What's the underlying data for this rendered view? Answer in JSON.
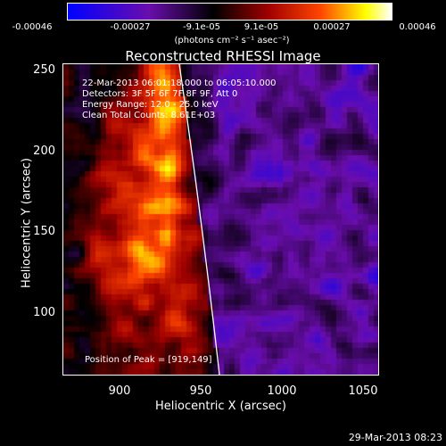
{
  "colorbar": {
    "ticks": [
      "-0.00046",
      "-0.00027",
      "-9.1e-05",
      "9.1e-05",
      "0.00027",
      "0.00046"
    ],
    "unit": "(photons cm⁻² s⁻¹ asec⁻²)",
    "colors": [
      "#0000ff",
      "#6a0dad",
      "#000000",
      "#8b0000",
      "#ff4500",
      "#ffff00",
      "#ffffff"
    ]
  },
  "chart_data": {
    "type": "heatmap",
    "title": "Reconstructed RHESSI Image",
    "xlabel": "Heliocentric X (arcsec)",
    "ylabel": "Heliocentric Y (arcsec)",
    "xlim": [
      865,
      1060
    ],
    "ylim": [
      55,
      252
    ],
    "x_ticks": [
      "900",
      "950",
      "1000",
      "1050"
    ],
    "y_ticks": [
      "100",
      "150",
      "200",
      "250"
    ],
    "colorbar_range": [
      -0.00046,
      0.00046
    ],
    "peak_position": [
      919,
      149
    ],
    "annotations": [
      "22-Mar-2013 06:01:18.000 to 06:05:10.000",
      "Detectors: 3F 5F 6F 7F 8F 9F, Att 0",
      "Energy Range: 12.0 - 25.0 keV",
      "Clean     Total Counts: 8.61E+03"
    ],
    "peak_label": "Position of Peak = [919,149]"
  },
  "footer": {
    "date": "29-Mar-2013 08:23"
  }
}
